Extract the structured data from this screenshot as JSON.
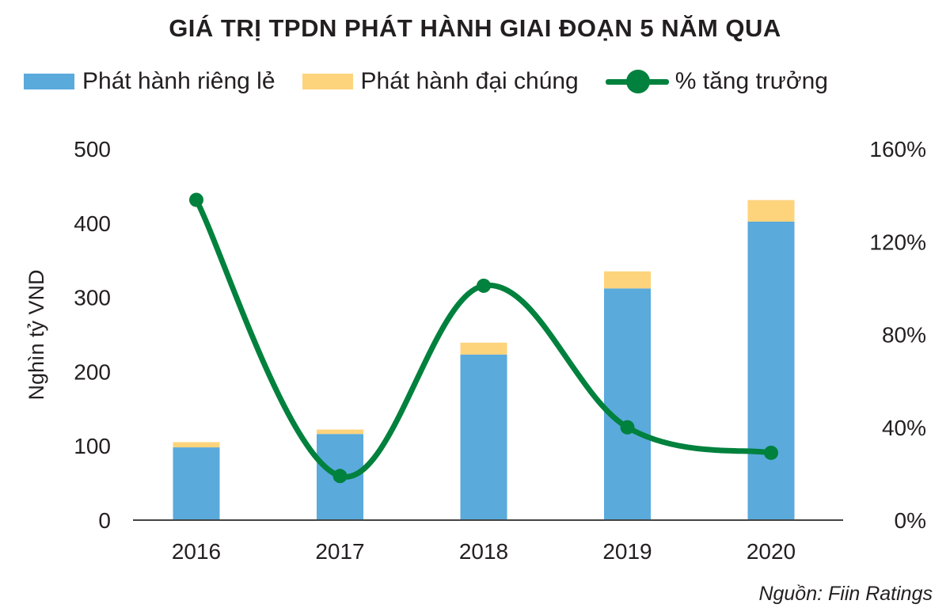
{
  "chart_data": {
    "type": "bar",
    "title": "GIÁ TRỊ TPDN PHÁT HÀNH GIAI ĐOẠN 5 NĂM QUA",
    "categories": [
      "2016",
      "2017",
      "2018",
      "2019",
      "2020"
    ],
    "series": [
      {
        "name": "Phát hành riêng lẻ",
        "type": "bar",
        "stack": "total",
        "color": "#5aaadc",
        "values": [
          98,
          116,
          223,
          312,
          402
        ]
      },
      {
        "name": "Phát hành đại chúng",
        "type": "bar",
        "stack": "total",
        "color": "#fdd37c",
        "values": [
          7,
          6,
          16,
          23,
          29
        ]
      },
      {
        "name": "% tăng trưởng",
        "type": "line",
        "axis": "right",
        "color": "#00813d",
        "values": [
          138,
          19,
          101,
          40,
          29
        ]
      }
    ],
    "ylabel": "Nghìn tỷ VND",
    "ylim": [
      0,
      500
    ],
    "yticks": [
      "0",
      "100",
      "200",
      "300",
      "400",
      "500"
    ],
    "y2lim": [
      0,
      160
    ],
    "y2ticks": [
      "0%",
      "40%",
      "80%",
      "120%",
      "160%"
    ],
    "legend": "top-left",
    "grid": false,
    "source": "Nguồn: Fiin Ratings"
  }
}
